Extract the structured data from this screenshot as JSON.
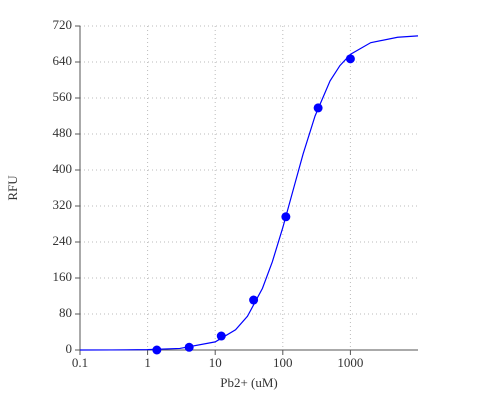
{
  "chart_data": {
    "type": "scatter",
    "xlabel": "Pb2+ (uM)",
    "ylabel": "RFU",
    "xscale": "log",
    "grid": true,
    "xlim": [
      0.1,
      10000
    ],
    "ylim": [
      0,
      720
    ],
    "xticks": [
      0.1,
      1,
      10,
      100,
      1000
    ],
    "yticks": [
      0,
      80,
      160,
      240,
      320,
      400,
      480,
      560,
      640,
      720
    ],
    "series": [
      {
        "type": "line",
        "color": "#0000ff",
        "x": [
          0.1,
          0.3,
          1,
          3,
          10,
          20,
          30,
          50,
          70,
          100,
          150,
          200,
          300,
          500,
          700,
          1000,
          2000,
          5000,
          10000
        ],
        "values": [
          0.03,
          0.15,
          0.8,
          3.5,
          18,
          45,
          75,
          137,
          196,
          272,
          368,
          436,
          520,
          598,
          632,
          657,
          683,
          695,
          698
        ]
      },
      {
        "type": "scatter",
        "color": "#0000ff",
        "x": [
          1.37,
          4.12,
          12.3,
          37,
          111,
          333,
          1000
        ],
        "values": [
          0,
          6,
          31,
          111,
          296,
          538,
          647
        ]
      }
    ]
  }
}
